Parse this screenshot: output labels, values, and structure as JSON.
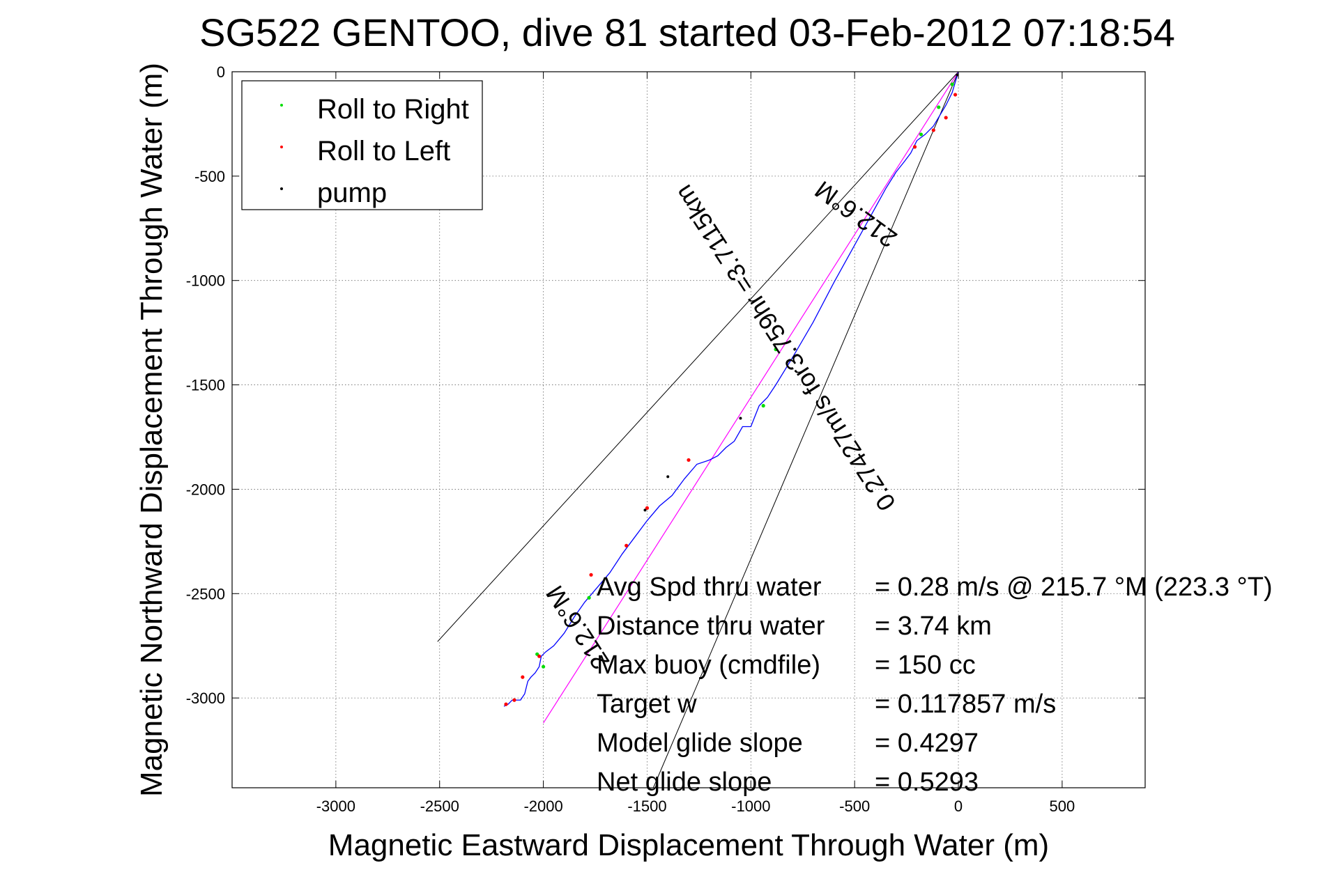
{
  "chart_data": {
    "type": "line",
    "title": "SG522 GENTOO, dive 81 started 03-Feb-2012 07:18:54",
    "xlabel": "Magnetic Eastward Displacement Through Water (m)",
    "ylabel": "Magnetic Northward Displacement Through Water (m)",
    "xlim": [
      -3500,
      900
    ],
    "ylim": [
      -3430,
      0
    ],
    "xticks": [
      -3000,
      -2500,
      -2000,
      -1500,
      -1000,
      -500,
      0,
      500
    ],
    "yticks": [
      0,
      -500,
      -1000,
      -1500,
      -2000,
      -2500,
      -3000
    ],
    "grid": true,
    "legend": {
      "placement": "top-left",
      "entries": [
        {
          "label": "Roll to Right",
          "color": "#00dd00"
        },
        {
          "label": "Roll to Left",
          "color": "#ff0000"
        },
        {
          "label": "pump",
          "color": "#000000"
        }
      ]
    },
    "track": {
      "name": "glider track",
      "color": "#0000ff",
      "x": [
        0,
        -30,
        -60,
        -120,
        -160,
        -200,
        -230,
        -260,
        -300,
        -350,
        -400,
        -450,
        -500,
        -600,
        -700,
        -800,
        -880,
        -920,
        -960,
        -1000,
        -1040,
        -1080,
        -1120,
        -1160,
        -1200,
        -1260,
        -1320,
        -1380,
        -1440,
        -1500,
        -1560,
        -1620,
        -1680,
        -1740,
        -1800,
        -1850,
        -1900,
        -1950,
        -1990,
        -2010,
        -2020,
        -2040,
        -2060,
        -2075,
        -2090,
        -2110,
        -2130,
        -2150,
        -2170,
        -2190
      ],
      "y": [
        0,
        -100,
        -160,
        -260,
        -300,
        -330,
        -390,
        -430,
        -480,
        -560,
        -650,
        -740,
        -830,
        -1010,
        -1200,
        -1370,
        -1500,
        -1560,
        -1600,
        -1700,
        -1700,
        -1770,
        -1800,
        -1840,
        -1860,
        -1880,
        -1950,
        -2030,
        -2080,
        -2150,
        -2230,
        -2310,
        -2400,
        -2470,
        -2540,
        -2610,
        -2690,
        -2750,
        -2780,
        -2800,
        -2850,
        -2880,
        -2900,
        -2920,
        -2980,
        -3010,
        -3010,
        -3010,
        -3030,
        -3040
      ]
    },
    "heading_line": {
      "name": "heading line",
      "color": "#ff00ff",
      "x": [
        0,
        -2000
      ],
      "y": [
        0,
        -3120
      ]
    },
    "bounding_lines": [
      {
        "color": "#000000",
        "x": [
          0,
          -2510
        ],
        "y": [
          0,
          -2730
        ]
      },
      {
        "color": "#000000",
        "x": [
          0,
          -1470
        ],
        "y": [
          0,
          -3430
        ]
      }
    ],
    "markers": {
      "roll_right": {
        "color": "#00dd00",
        "x": [
          -30,
          -95,
          -180,
          -880,
          -940,
          -2000,
          -2030,
          -1780
        ],
        "y": [
          -60,
          -170,
          -300,
          -1330,
          -1600,
          -2850,
          -2790,
          -2520
        ]
      },
      "roll_left": {
        "color": "#ff0000",
        "x": [
          -15,
          -60,
          -120,
          -210,
          -1300,
          -1500,
          -1600,
          -1770,
          -2020,
          -2100,
          -2180,
          -2140
        ],
        "y": [
          -110,
          -220,
          -280,
          -360,
          -1860,
          -2090,
          -2270,
          -2410,
          -2800,
          -2900,
          -3030,
          -3010
        ]
      },
      "pump": {
        "color": "#000000",
        "x": [
          -5,
          -1050,
          -1400,
          -1510
        ],
        "y": [
          -15,
          -1660,
          -1940,
          -2100
        ]
      }
    },
    "rotated_labels": [
      {
        "text": "212.6°M",
        "x": -470,
        "y": -650,
        "angle": 36
      },
      {
        "text": "0.27427m/s for3.759hr =3.7115km",
        "x": -800,
        "y": -1300,
        "angle": 57
      },
      {
        "text": "212.6°M",
        "x": -1800,
        "y": -2640,
        "angle": 57
      }
    ],
    "annotations": [
      {
        "label": "Avg Spd thru water",
        "value": "=  0.28 m/s @ 215.7 °M (223.3 °T)"
      },
      {
        "label": "Distance thru water",
        "value": "=  3.74 km"
      },
      {
        "label": "Max buoy (cmdfile)",
        "value": "= 150 cc"
      },
      {
        "label": "Target w",
        "value": "= 0.117857 m/s"
      },
      {
        "label": "Model glide slope",
        "value": "= 0.4297"
      },
      {
        "label": "Net glide slope",
        "value": "= 0.5293"
      }
    ]
  }
}
